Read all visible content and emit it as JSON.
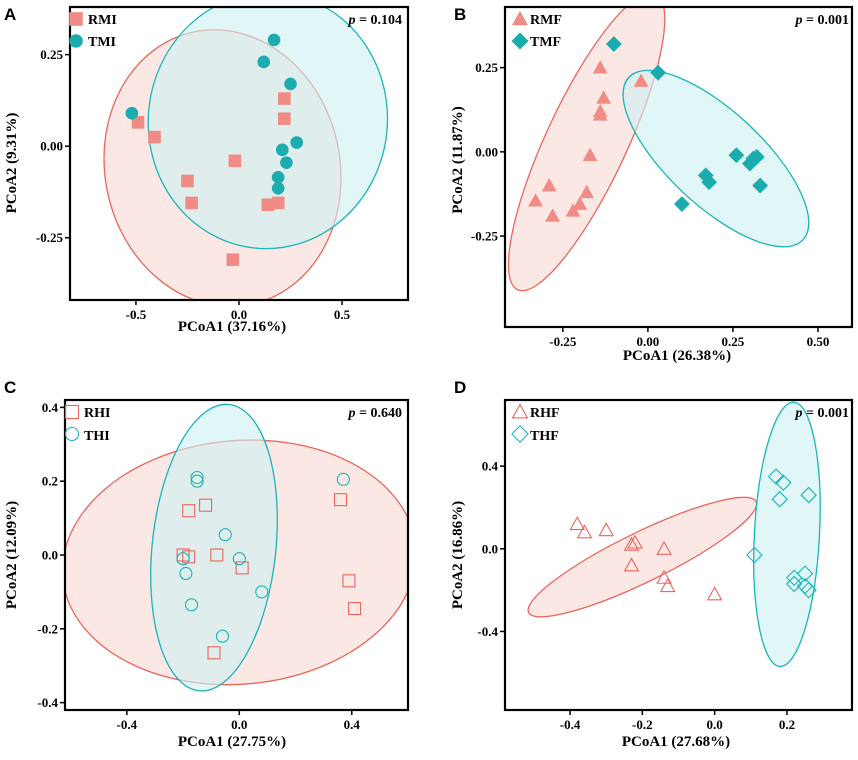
{
  "colors": {
    "red": "#E8665E",
    "red_fill": "#F08C85",
    "cyan": "#19B5B8",
    "cyan_marker": "#1AACAE",
    "red_ellipse_fill": "#F9D8D4",
    "cyan_ellipse_fill": "#CFF0F2",
    "overlap_fill": "#C9D9DC"
  },
  "chart_data": [
    {
      "panel": "A",
      "type": "scatter",
      "xlabel": "PCoA1 (37.16%)",
      "ylabel": "PCoA2 (9.31%)",
      "p_value": "0.104",
      "xlim": [
        -0.82,
        0.82
      ],
      "ylim": [
        -0.42,
        0.38
      ],
      "xticks": [
        -0.5,
        0.0,
        0.5
      ],
      "xtick_labels": [
        "-0.5",
        "0.0",
        "0.5"
      ],
      "yticks": [
        -0.25,
        0.0,
        0.25
      ],
      "ytick_labels": [
        "-0.25",
        "0.00",
        "0.25"
      ],
      "legend_position": "top-left",
      "series": [
        {
          "name": "RMI",
          "marker": "square",
          "filled": true,
          "color_key": "red",
          "points": [
            [
              -0.49,
              0.065
            ],
            [
              -0.41,
              0.025
            ],
            [
              -0.25,
              -0.095
            ],
            [
              -0.23,
              -0.155
            ],
            [
              -0.02,
              -0.04
            ],
            [
              -0.03,
              -0.31
            ],
            [
              0.14,
              -0.16
            ],
            [
              0.19,
              -0.155
            ],
            [
              0.22,
              0.075
            ],
            [
              0.22,
              0.13
            ]
          ]
        },
        {
          "name": "TMI",
          "marker": "circle",
          "filled": true,
          "color_key": "cyan",
          "points": [
            [
              -0.52,
              0.09
            ],
            [
              0.12,
              0.23
            ],
            [
              0.17,
              0.29
            ],
            [
              0.25,
              0.17
            ],
            [
              0.21,
              -0.01
            ],
            [
              0.23,
              -0.045
            ],
            [
              0.28,
              0.01
            ],
            [
              0.19,
              -0.085
            ],
            [
              0.19,
              -0.115
            ]
          ]
        }
      ],
      "ellipses": [
        {
          "series": "RMI",
          "cx": -0.08,
          "cy": -0.06,
          "rx": 0.57,
          "ry": 0.38,
          "angle_deg": 12
        },
        {
          "series": "TMI",
          "cx": 0.14,
          "cy": 0.07,
          "rx": 0.58,
          "ry": 0.35,
          "angle_deg": -6
        }
      ]
    },
    {
      "panel": "B",
      "type": "scatter",
      "xlabel": "PCoA1 (26.38%)",
      "ylabel": "PCoA2 (11.87%)",
      "p_value": "0.001",
      "xlim": [
        -0.42,
        0.6
      ],
      "ylim": [
        -0.52,
        0.43
      ],
      "xticks": [
        -0.25,
        0.0,
        0.25,
        0.5
      ],
      "xtick_labels": [
        "-0.25",
        "0.00",
        "0.25",
        "0.50"
      ],
      "yticks": [
        -0.25,
        0.0,
        0.25
      ],
      "ytick_labels": [
        "-0.25",
        "0.00",
        "0.25"
      ],
      "legend_position": "top-left",
      "series": [
        {
          "name": "RMF",
          "marker": "triangle",
          "filled": true,
          "color_key": "red",
          "points": [
            [
              -0.02,
              0.21
            ],
            [
              -0.14,
              0.25
            ],
            [
              -0.13,
              0.16
            ],
            [
              -0.14,
              0.12
            ],
            [
              -0.14,
              0.11
            ],
            [
              -0.17,
              -0.01
            ],
            [
              -0.18,
              -0.12
            ],
            [
              -0.2,
              -0.155
            ],
            [
              -0.22,
              -0.175
            ],
            [
              -0.29,
              -0.1
            ],
            [
              -0.33,
              -0.145
            ],
            [
              -0.28,
              -0.19
            ]
          ]
        },
        {
          "name": "TMF",
          "marker": "diamond",
          "filled": true,
          "color_key": "cyan",
          "points": [
            [
              -0.1,
              0.32
            ],
            [
              0.03,
              0.235
            ],
            [
              0.26,
              -0.01
            ],
            [
              0.31,
              -0.02
            ],
            [
              0.32,
              -0.015
            ],
            [
              0.3,
              -0.035
            ],
            [
              0.17,
              -0.07
            ],
            [
              0.18,
              -0.09
            ],
            [
              0.33,
              -0.1
            ],
            [
              0.1,
              -0.155
            ]
          ]
        }
      ],
      "ellipses": [
        {
          "series": "RMF",
          "cx": -0.18,
          "cy": 0.03,
          "rx": 0.48,
          "ry": 0.12,
          "angle_deg": 65
        },
        {
          "series": "TMF",
          "cx": 0.2,
          "cy": -0.02,
          "rx": 0.35,
          "ry": 0.14,
          "angle_deg": -43
        }
      ]
    },
    {
      "panel": "C",
      "type": "scatter",
      "xlabel": "PCoA1 (27.75%)",
      "ylabel": "PCoA2 (12.09%)",
      "p_value": "0.640",
      "xlim": [
        -0.62,
        0.6
      ],
      "ylim": [
        -0.42,
        0.42
      ],
      "xticks": [
        -0.4,
        0.0,
        0.4
      ],
      "xtick_labels": [
        "-0.4",
        "0.0",
        "0.4"
      ],
      "yticks": [
        -0.4,
        -0.2,
        0.0,
        0.2,
        0.4
      ],
      "ytick_labels": [
        "-0.4",
        "-0.2",
        "0.0",
        "0.2",
        "0.4"
      ],
      "legend_position": "top-left",
      "series": [
        {
          "name": "RHI",
          "marker": "square",
          "filled": false,
          "color_key": "red",
          "points": [
            [
              -0.18,
              0.12
            ],
            [
              -0.12,
              0.135
            ],
            [
              -0.2,
              0.0
            ],
            [
              -0.18,
              -0.005
            ],
            [
              -0.08,
              0.0
            ],
            [
              0.01,
              -0.035
            ],
            [
              -0.09,
              -0.265
            ],
            [
              0.36,
              0.15
            ],
            [
              0.39,
              -0.07
            ],
            [
              0.41,
              -0.145
            ]
          ]
        },
        {
          "name": "THI",
          "marker": "circle",
          "filled": false,
          "color_key": "cyan",
          "points": [
            [
              -0.15,
              0.21
            ],
            [
              -0.15,
              0.2
            ],
            [
              -0.2,
              -0.01
            ],
            [
              -0.19,
              -0.05
            ],
            [
              -0.05,
              0.055
            ],
            [
              0.0,
              -0.01
            ],
            [
              0.08,
              -0.1
            ],
            [
              -0.17,
              -0.135
            ],
            [
              -0.06,
              -0.22
            ],
            [
              0.37,
              0.205
            ]
          ]
        }
      ],
      "ellipses": [
        {
          "series": "RHI",
          "cx": 0.0,
          "cy": -0.02,
          "rx": 0.63,
          "ry": 0.33,
          "angle_deg": 5
        },
        {
          "series": "THI",
          "cx": -0.09,
          "cy": 0.02,
          "rx": 0.22,
          "ry": 0.39,
          "angle_deg": -6
        }
      ]
    },
    {
      "panel": "D",
      "type": "scatter",
      "xlabel": "PCoA1 (27.68%)",
      "ylabel": "PCoA2 (16.86%)",
      "p_value": "0.001",
      "xlim": [
        -0.58,
        0.38
      ],
      "ylim": [
        -0.78,
        0.72
      ],
      "xticks": [
        -0.4,
        -0.2,
        0.0,
        0.2
      ],
      "xtick_labels": [
        "-0.4",
        "-0.2",
        "0.0",
        "0.2"
      ],
      "yticks": [
        -0.4,
        0.0,
        0.4
      ],
      "ytick_labels": [
        "-0.4",
        "0.0",
        "0.4"
      ],
      "legend_position": "top-left",
      "series": [
        {
          "name": "RHF",
          "marker": "triangle",
          "filled": false,
          "color_key": "red",
          "points": [
            [
              -0.38,
              0.12
            ],
            [
              -0.36,
              0.08
            ],
            [
              -0.3,
              0.09
            ],
            [
              -0.23,
              0.02
            ],
            [
              -0.22,
              0.03
            ],
            [
              -0.14,
              0.0
            ],
            [
              -0.23,
              -0.08
            ],
            [
              -0.14,
              -0.14
            ],
            [
              -0.13,
              -0.18
            ],
            [
              0.0,
              -0.22
            ]
          ]
        },
        {
          "name": "THF",
          "marker": "diamond",
          "filled": false,
          "color_key": "cyan",
          "points": [
            [
              0.17,
              0.35
            ],
            [
              0.19,
              0.32
            ],
            [
              0.26,
              0.26
            ],
            [
              0.18,
              0.24
            ],
            [
              0.11,
              -0.03
            ],
            [
              0.22,
              -0.14
            ],
            [
              0.25,
              -0.12
            ],
            [
              0.22,
              -0.17
            ],
            [
              0.25,
              -0.18
            ],
            [
              0.26,
              -0.2
            ]
          ]
        }
      ],
      "ellipses": [
        {
          "series": "RHF",
          "cx": -0.2,
          "cy": -0.04,
          "rx": 0.35,
          "ry": 0.12,
          "angle_deg": 26
        },
        {
          "series": "THF",
          "cx": 0.2,
          "cy": 0.07,
          "rx": 0.09,
          "ry": 0.64,
          "angle_deg": -3
        }
      ]
    }
  ]
}
